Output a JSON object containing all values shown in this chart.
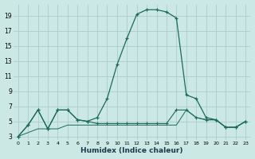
{
  "xlabel": "Humidex (Indice chaleur)",
  "bg_color": "#cce8e4",
  "grid_color": "#aaccca",
  "line_color": "#1a6b5a",
  "xlim": [
    -0.5,
    23.5
  ],
  "ylim": [
    2.5,
    20.5
  ],
  "xticks": [
    0,
    1,
    2,
    3,
    4,
    5,
    6,
    7,
    8,
    9,
    10,
    11,
    12,
    13,
    14,
    15,
    16,
    17,
    18,
    19,
    20,
    21,
    22,
    23
  ],
  "yticks": [
    3,
    5,
    7,
    9,
    11,
    13,
    15,
    17,
    19
  ],
  "series1_x": [
    0,
    1,
    2,
    3,
    4,
    5,
    6,
    7,
    8,
    9,
    10,
    11,
    12,
    13,
    14,
    15,
    16,
    17,
    18,
    19,
    20,
    21,
    22,
    23
  ],
  "series1_y": [
    3,
    4.5,
    6.5,
    4,
    6.5,
    6.5,
    5.2,
    5.0,
    5.5,
    8.0,
    12.5,
    16,
    19.2,
    19.8,
    19.8,
    19.5,
    18.7,
    8.5,
    8.0,
    5.5,
    5.2,
    4.2,
    4.2,
    5.0
  ],
  "series2_x": [
    0,
    1,
    2,
    3,
    4,
    5,
    6,
    7,
    8,
    9,
    10,
    11,
    12,
    13,
    14,
    15,
    16,
    17,
    18,
    19,
    20,
    21,
    22,
    23
  ],
  "series2_y": [
    3,
    4.5,
    6.5,
    4,
    6.5,
    6.5,
    5.2,
    5.0,
    4.7,
    4.7,
    4.7,
    4.7,
    4.7,
    4.7,
    4.7,
    4.7,
    6.5,
    6.5,
    5.5,
    5.2,
    5.2,
    4.2,
    4.2,
    5.0
  ],
  "series3_x": [
    0,
    1,
    2,
    3,
    4,
    5,
    6,
    7,
    8,
    9,
    10,
    11,
    12,
    13,
    14,
    15,
    16,
    17,
    18,
    19,
    20,
    21,
    22,
    23
  ],
  "series3_y": [
    3,
    3.5,
    4.0,
    4.0,
    4.0,
    4.5,
    4.5,
    4.5,
    4.5,
    4.5,
    4.5,
    4.5,
    4.5,
    4.5,
    4.5,
    4.5,
    4.5,
    6.5,
    5.5,
    5.2,
    5.2,
    4.2,
    4.2,
    5.0
  ]
}
